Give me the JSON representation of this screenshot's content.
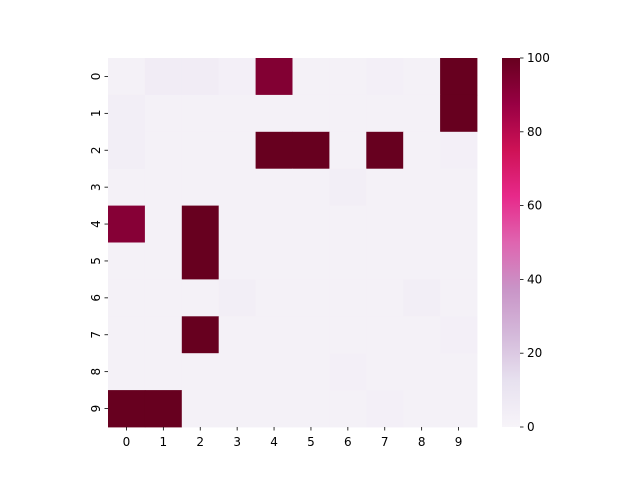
{
  "chart_data": {
    "type": "heatmap",
    "title": "",
    "xlabel": "",
    "ylabel": "",
    "x_ticks": [
      "0",
      "1",
      "2",
      "3",
      "4",
      "5",
      "6",
      "7",
      "8",
      "9"
    ],
    "y_ticks": [
      "0",
      "1",
      "2",
      "3",
      "4",
      "5",
      "6",
      "7",
      "8",
      "9"
    ],
    "values": [
      [
        2,
        5,
        5,
        3,
        93,
        2,
        2,
        3,
        2,
        100
      ],
      [
        4,
        2,
        2,
        2,
        2,
        2,
        2,
        2,
        2,
        100
      ],
      [
        4,
        2,
        2,
        2,
        100,
        100,
        2,
        100,
        2,
        3
      ],
      [
        2,
        2,
        2,
        2,
        2,
        2,
        4,
        2,
        2,
        2
      ],
      [
        92,
        2,
        100,
        2,
        2,
        2,
        2,
        2,
        2,
        2
      ],
      [
        2,
        2,
        100,
        2,
        2,
        2,
        2,
        2,
        2,
        2
      ],
      [
        2,
        2,
        2,
        4,
        2,
        2,
        2,
        2,
        4,
        2
      ],
      [
        2,
        2,
        100,
        2,
        2,
        2,
        2,
        2,
        2,
        3
      ],
      [
        2,
        2,
        2,
        2,
        2,
        2,
        3,
        2,
        2,
        2
      ],
      [
        100,
        100,
        2,
        2,
        2,
        2,
        2,
        3,
        2,
        2
      ]
    ],
    "vmin": 0,
    "vmax": 100,
    "colormap": "PuRd",
    "colorbar": {
      "ticks": [
        0,
        20,
        40,
        60,
        80,
        100
      ],
      "tick_labels": [
        "0",
        "20",
        "40",
        "60",
        "80",
        "100"
      ]
    },
    "colormap_stops": [
      "#f7f4f9",
      "#e7e1ef",
      "#d4b9da",
      "#c994c7",
      "#df65b0",
      "#e7298a",
      "#ce1256",
      "#980043",
      "#67001f"
    ]
  }
}
